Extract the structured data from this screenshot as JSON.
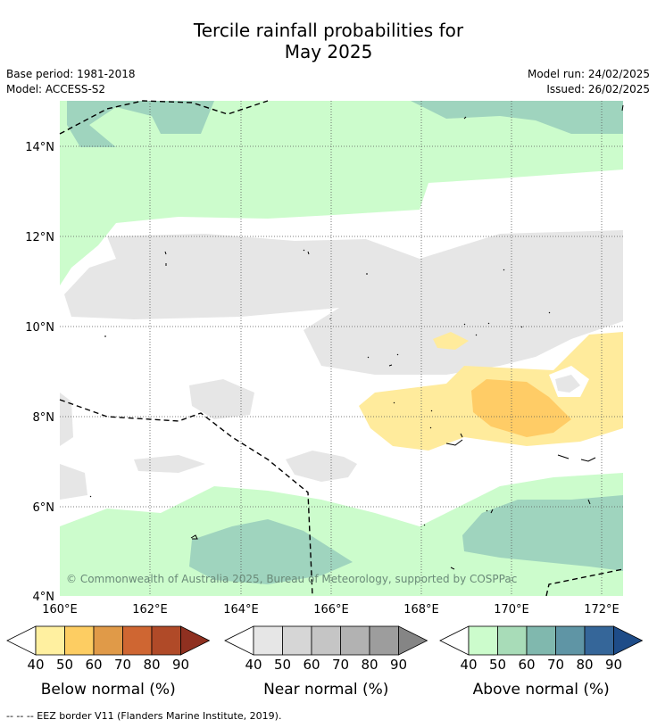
{
  "title": {
    "line1": "Tercile rainfall probabilities for",
    "line2": "May 2025"
  },
  "meta": {
    "base_period": "Base period: 1981-2018",
    "model": "Model: ACCESS-S2",
    "model_run": "Model run: 24/02/2025",
    "issued": "Issued: 26/02/2025"
  },
  "map": {
    "x_ticks": [
      "160°E",
      "162°E",
      "164°E",
      "166°E",
      "168°E",
      "170°E",
      "172°E"
    ],
    "y_ticks": [
      "14°N",
      "12°N",
      "10°N",
      "8°N",
      "6°N",
      "4°N"
    ],
    "copyright": "© Commonwealth of Australia 2025, Bureau of Meteorology, supported by COSPPac"
  },
  "colorbars": [
    {
      "title": "Below normal (%)",
      "labels": [
        "40",
        "50",
        "60",
        "70",
        "80",
        "90"
      ],
      "colors": [
        "#fff0a0",
        "#fdcd62",
        "#e09a48",
        "#cf6632",
        "#b04a28",
        "#8f3020"
      ]
    },
    {
      "title": "Near normal (%)",
      "labels": [
        "40",
        "50",
        "60",
        "70",
        "80",
        "90"
      ],
      "colors": [
        "#e6e6e6",
        "#d6d6d6",
        "#c5c5c5",
        "#b2b2b2",
        "#9d9d9d",
        "#858585"
      ]
    },
    {
      "title": "Above normal (%)",
      "labels": [
        "40",
        "50",
        "60",
        "70",
        "80",
        "90"
      ],
      "colors": [
        "#ccfccc",
        "#a8dcb8",
        "#80b8ae",
        "#5f95a5",
        "#356699",
        "#1e4c88"
      ]
    }
  ],
  "colors": {
    "above_40": "#ccfccc",
    "above_50": "#9fd4be",
    "near_40": "#e6e6e6",
    "below_40": "#ffeb9c",
    "below_50": "#ffcc66"
  },
  "footnote": "--  --  -- EEZ border V11 (Flanders Marine Institute, 2019)."
}
